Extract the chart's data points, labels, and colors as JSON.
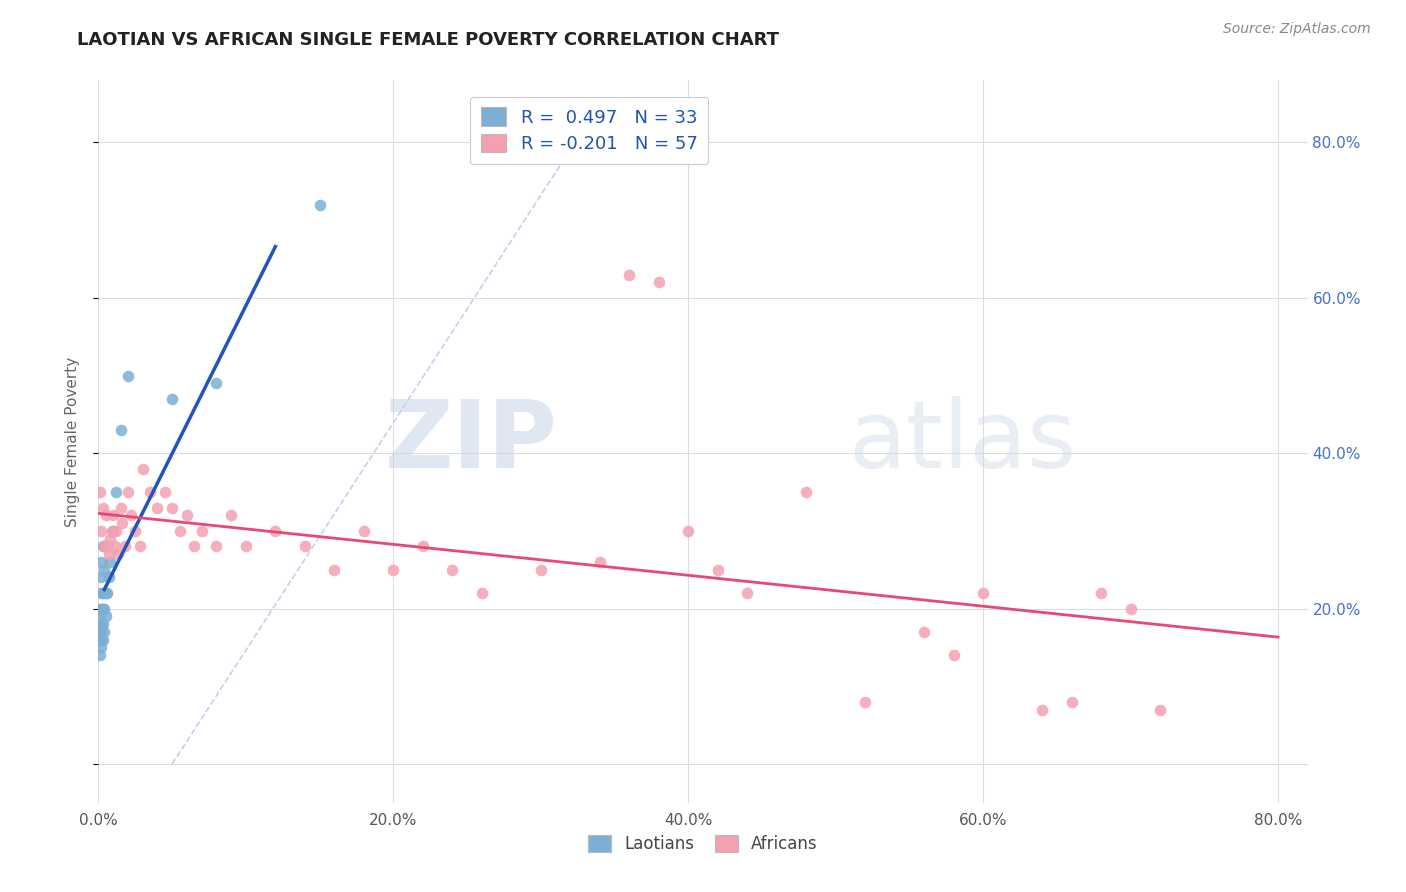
{
  "title": "LAOTIAN VS AFRICAN SINGLE FEMALE POVERTY CORRELATION CHART",
  "source": "Source: ZipAtlas.com",
  "ylabel": "Single Female Poverty",
  "legend_r1": "R =  0.497",
  "legend_n1": "N = 33",
  "legend_r2": "R = -0.201",
  "legend_n2": "N = 57",
  "laotian_color": "#7BAFD4",
  "african_color": "#F4A0B0",
  "laotian_line_color": "#2255BB",
  "african_line_color": "#E84878",
  "diagonal_color": "#BBCCEE",
  "watermark_zip": "ZIP",
  "watermark_atlas": "atlas",
  "background_color": "#FFFFFF",
  "xlim": [
    0.0,
    0.82
  ],
  "ylim": [
    -0.05,
    0.88
  ],
  "xtick_positions": [
    0.0,
    0.2,
    0.4,
    0.6,
    0.8
  ],
  "xtick_labels": [
    "0.0%",
    "20.0%",
    "40.0%",
    "60.0%",
    "80.0%"
  ],
  "ytick_right_positions": [
    0.2,
    0.4,
    0.6,
    0.8
  ],
  "ytick_right_labels": [
    "20.0%",
    "40.0%",
    "60.0%",
    "80.0%"
  ],
  "laotians_x": [
    0.001,
    0.001,
    0.001,
    0.001,
    0.001,
    0.002,
    0.002,
    0.002,
    0.002,
    0.002,
    0.002,
    0.002,
    0.002,
    0.003,
    0.003,
    0.003,
    0.003,
    0.003,
    0.004,
    0.004,
    0.004,
    0.005,
    0.005,
    0.006,
    0.007,
    0.008,
    0.01,
    0.012,
    0.015,
    0.02,
    0.05,
    0.08,
    0.15
  ],
  "laotians_y": [
    0.14,
    0.16,
    0.17,
    0.19,
    0.2,
    0.15,
    0.16,
    0.17,
    0.18,
    0.2,
    0.22,
    0.24,
    0.26,
    0.16,
    0.18,
    0.2,
    0.22,
    0.28,
    0.17,
    0.2,
    0.25,
    0.19,
    0.22,
    0.22,
    0.24,
    0.26,
    0.3,
    0.35,
    0.43,
    0.5,
    0.47,
    0.49,
    0.72
  ],
  "africans_x": [
    0.001,
    0.002,
    0.003,
    0.004,
    0.005,
    0.006,
    0.007,
    0.008,
    0.009,
    0.01,
    0.011,
    0.012,
    0.013,
    0.015,
    0.016,
    0.018,
    0.02,
    0.022,
    0.025,
    0.028,
    0.03,
    0.035,
    0.04,
    0.045,
    0.05,
    0.055,
    0.06,
    0.065,
    0.07,
    0.08,
    0.09,
    0.1,
    0.12,
    0.14,
    0.16,
    0.18,
    0.2,
    0.22,
    0.24,
    0.26,
    0.3,
    0.34,
    0.36,
    0.38,
    0.4,
    0.42,
    0.44,
    0.48,
    0.52,
    0.56,
    0.58,
    0.6,
    0.64,
    0.66,
    0.68,
    0.7,
    0.72
  ],
  "africans_y": [
    0.35,
    0.3,
    0.33,
    0.28,
    0.32,
    0.28,
    0.27,
    0.29,
    0.3,
    0.32,
    0.28,
    0.3,
    0.27,
    0.33,
    0.31,
    0.28,
    0.35,
    0.32,
    0.3,
    0.28,
    0.38,
    0.35,
    0.33,
    0.35,
    0.33,
    0.3,
    0.32,
    0.28,
    0.3,
    0.28,
    0.32,
    0.28,
    0.3,
    0.28,
    0.25,
    0.3,
    0.25,
    0.28,
    0.25,
    0.22,
    0.25,
    0.26,
    0.63,
    0.62,
    0.3,
    0.25,
    0.22,
    0.35,
    0.08,
    0.17,
    0.14,
    0.22,
    0.07,
    0.08,
    0.22,
    0.2,
    0.07
  ]
}
